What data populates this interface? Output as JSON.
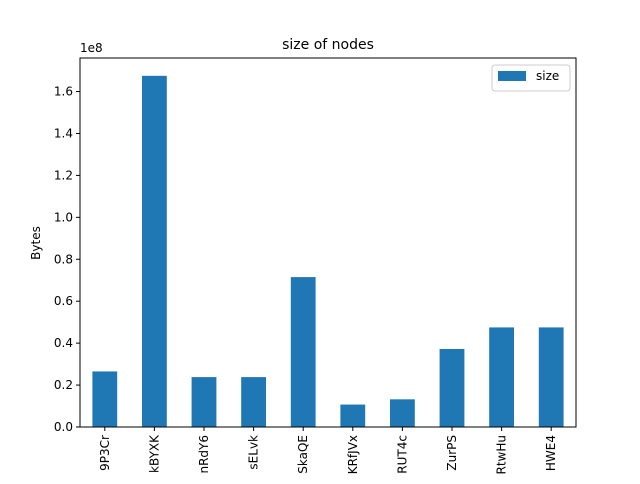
{
  "chart_data": {
    "type": "bar",
    "title": "size of nodes",
    "xlabel": "",
    "ylabel": "Bytes",
    "offset_label": "1e8",
    "categories": [
      "9P3Cr",
      "kBYXK",
      "nRdY6",
      "sELvk",
      "SkaQE",
      "KRfJVx",
      "RUT4c",
      "ZurPS",
      "RtwHu",
      "HWE4"
    ],
    "series": [
      {
        "name": "size",
        "color": "#1f77b4",
        "values": [
          26500000,
          167500000,
          23800000,
          23800000,
          71500000,
          10700000,
          13200000,
          37200000,
          47500000,
          47500000
        ]
      }
    ],
    "ylim": [
      0,
      176000000
    ],
    "yticks": [
      0,
      20000000,
      40000000,
      60000000,
      80000000,
      100000000,
      120000000,
      140000000,
      160000000
    ],
    "ytick_labels": [
      "0.0",
      "0.2",
      "0.4",
      "0.6",
      "0.8",
      "1.0",
      "1.2",
      "1.4",
      "1.6"
    ],
    "legend": {
      "placement": "top-right",
      "entries": [
        "size"
      ]
    },
    "grid": false
  }
}
